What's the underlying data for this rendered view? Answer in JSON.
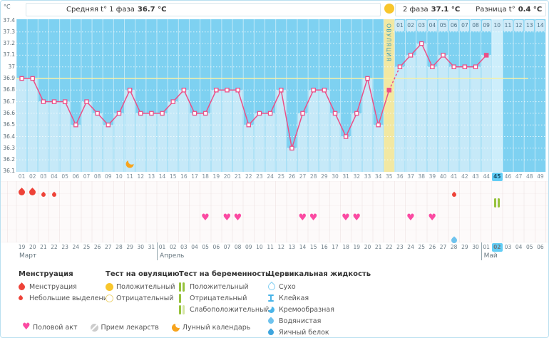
{
  "header": {
    "unit": "°C",
    "phase1_label": "Средняя t° 1 фаза",
    "phase1_value": "36.7 °C",
    "phase2_label": "2 фаза",
    "phase2_value": "37.1 °C",
    "diff_label": "Разница t°",
    "diff_value": "0.4 °C"
  },
  "ovulation": {
    "label": "ОВУЛЯЦИЯ",
    "day": 35
  },
  "yaxis_ticks": [
    "37.4",
    "37.3",
    "37.2",
    "37.1",
    "37",
    "36.9",
    "36.8",
    "36.7",
    "36.6",
    "36.5",
    "36.4",
    "36.3",
    "36.2",
    "36.1"
  ],
  "phase2_day_labels": [
    "01",
    "02",
    "03",
    "04",
    "05",
    "06",
    "07",
    "08",
    "09",
    "10",
    "11",
    "12",
    "13",
    "14"
  ],
  "day_numbers": [
    "01",
    "02",
    "03",
    "04",
    "05",
    "06",
    "07",
    "08",
    "09",
    "10",
    "11",
    "12",
    "13",
    "14",
    "15",
    "16",
    "17",
    "18",
    "19",
    "20",
    "21",
    "22",
    "23",
    "24",
    "25",
    "26",
    "27",
    "28",
    "29",
    "30",
    "31",
    "32",
    "33",
    "34",
    "35",
    "36",
    "37",
    "38",
    "39",
    "40",
    "41",
    "42",
    "43",
    "44",
    "45",
    "46",
    "47",
    "48",
    "49"
  ],
  "dates": [
    "19",
    "20",
    "21",
    "22",
    "23",
    "24",
    "25",
    "26",
    "27",
    "28",
    "29",
    "30",
    "31",
    "01",
    "02",
    "03",
    "04",
    "05",
    "06",
    "07",
    "08",
    "09",
    "10",
    "11",
    "12",
    "13",
    "14",
    "15",
    "16",
    "17",
    "18",
    "19",
    "20",
    "21",
    "22",
    "23",
    "24",
    "25",
    "26",
    "27",
    "28",
    "29",
    "30",
    "01",
    "02",
    "03",
    "04",
    "05",
    "06"
  ],
  "red_date_days": [
    3,
    4,
    10,
    11,
    17,
    18,
    24,
    25,
    31,
    32,
    38,
    39,
    46
  ],
  "today_day": 45,
  "months": [
    {
      "name": "Март",
      "start_day": 1
    },
    {
      "name": "Апрель",
      "start_day": 14
    },
    {
      "name": "Май",
      "start_day": 44
    }
  ],
  "chart_data": {
    "type": "line",
    "ylabel": "°C",
    "ylim": [
      36.1,
      37.4
    ],
    "ytick_step": 0.1,
    "x_label_days": "cycle days 01-49",
    "temps_by_day": [
      36.9,
      36.9,
      36.7,
      36.7,
      36.7,
      36.5,
      36.7,
      36.6,
      36.5,
      36.6,
      36.8,
      36.6,
      36.6,
      36.6,
      36.7,
      36.8,
      36.6,
      36.6,
      36.8,
      36.8,
      36.8,
      36.5,
      36.6,
      36.6,
      36.8,
      36.3,
      36.6,
      36.8,
      36.8,
      36.6,
      36.4,
      36.6,
      36.9,
      36.5,
      36.8,
      37.0,
      37.1,
      37.2,
      37.0,
      37.1,
      37.0,
      37.0,
      37.0,
      37.1,
      null,
      null,
      null,
      null,
      null
    ],
    "coverline": 36.9,
    "ovulation_day": 35,
    "today_day": 45,
    "dashed_segment_days": [
      35,
      36
    ],
    "filled_marker_days": [
      35,
      44
    ],
    "moon_day": 11,
    "phase1_mean": "36.7",
    "phase2_mean": "37.1",
    "phase_diff": "0.4"
  },
  "markers": {
    "menstruation_big": [
      1,
      2
    ],
    "menstruation_small": [
      3,
      4,
      41
    ],
    "pregnancy_test_positive": [
      45
    ],
    "intercourse": [
      18,
      20,
      21,
      27,
      28,
      31,
      32,
      37,
      39
    ],
    "cervical_watery": [
      41
    ]
  },
  "legend": {
    "columns": [
      {
        "header": "Менструация",
        "items": [
          {
            "icon": "menstruation-big-icon",
            "label": "Менструация"
          },
          {
            "icon": "menstruation-small-icon",
            "label": "Небольшие выделения"
          }
        ]
      },
      {
        "header": "Тест на овуляцию",
        "items": [
          {
            "icon": "ovulation-positive-icon",
            "label": "Положительный"
          },
          {
            "icon": "ovulation-negative-icon",
            "label": "Отрицательный"
          }
        ]
      },
      {
        "header": "Тест на беременность",
        "items": [
          {
            "icon": "pregnancy-positive-icon",
            "label": "Положительный"
          },
          {
            "icon": "pregnancy-negative-icon",
            "label": "Отрицательный"
          },
          {
            "icon": "pregnancy-weak-icon",
            "label": "Слабоположительный"
          }
        ]
      },
      {
        "header": "Цервикальная жидкость",
        "items": [
          {
            "icon": "cf-dry-icon",
            "label": "Сухо"
          },
          {
            "icon": "cf-sticky-icon",
            "label": "Клейкая"
          },
          {
            "icon": "cf-creamy-icon",
            "label": "Кремообразная"
          },
          {
            "icon": "cf-watery-icon",
            "label": "Водянистая"
          },
          {
            "icon": "cf-eggwhite-icon",
            "label": "Яичный белок"
          }
        ]
      }
    ],
    "bottom_row": [
      {
        "icon": "intercourse-icon",
        "label": "Половой акт"
      },
      {
        "icon": "medication-icon",
        "label": "Прием лекарств"
      },
      {
        "icon": "moon-icon",
        "label": "Лунный календарь"
      }
    ]
  },
  "colors": {
    "chart_bg": "#7ed1f1",
    "bar": "#c6e9f8",
    "today_col": "#cdeefb",
    "ovulation_band": "#f2e8a2",
    "band_text": "#3d9cb5",
    "coverline": "#f6f0a8",
    "temp_line": "#ec4f87",
    "menstruation": "#ee4238",
    "heart": "#fb4aa2",
    "preg_green": "#97c23c",
    "ovu_yellow": "#f8c62c",
    "cervical_blue": "#6fc3ee",
    "today_highlight": "#62cdf5",
    "moon": "#f7a41d"
  }
}
